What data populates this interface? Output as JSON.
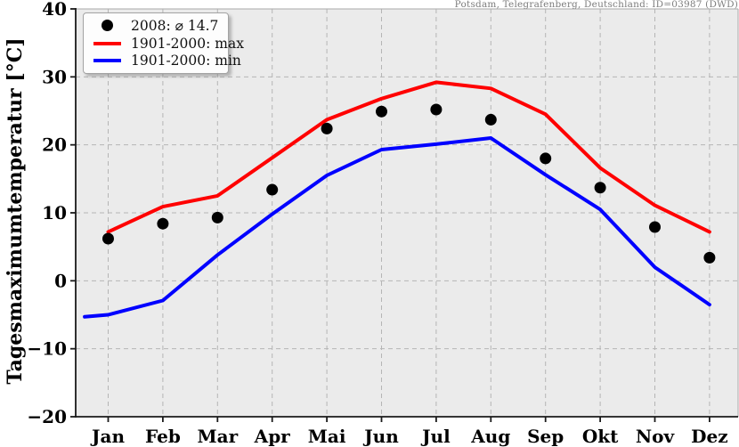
{
  "header": {
    "station_title": "Potsdam, Telegrafenberg, Deutschland: ID=03987 (DWD)"
  },
  "legend": {
    "items": [
      {
        "marker": "dot",
        "color": "#000000",
        "label": "2008: ⌀ 14.7"
      },
      {
        "marker": "line",
        "color": "#ff0000",
        "label": "1901-2000: max"
      },
      {
        "marker": "line",
        "color": "#0000ff",
        "label": "1901-2000: min"
      }
    ]
  },
  "chart_data": {
    "type": "line",
    "title": "Potsdam, Telegrafenberg, Deutschland: ID=03987 (DWD)",
    "xlabel": "",
    "ylabel": "Tagesmaximumtemperatur [°C]",
    "categories": [
      "Jan",
      "Feb",
      "Mar",
      "Apr",
      "Mai",
      "Jun",
      "Jul",
      "Aug",
      "Sep",
      "Okt",
      "Nov",
      "Dez"
    ],
    "ylim": [
      -20,
      40
    ],
    "yticks": [
      40,
      30,
      20,
      10,
      0,
      -10,
      -20
    ],
    "grid": true,
    "grid_style": "dashed",
    "legend_position": "top-left",
    "mean_2008": 14.7,
    "series": [
      {
        "name": "2008: ⌀ 14.7",
        "type": "scatter",
        "color": "#000000",
        "values": [
          6.2,
          8.4,
          9.3,
          13.4,
          22.4,
          24.9,
          25.2,
          23.7,
          18.0,
          13.7,
          7.9,
          3.4
        ]
      },
      {
        "name": "1901-2000: max",
        "type": "line",
        "color": "#ff0000",
        "values": [
          7.2,
          10.9,
          12.5,
          18.1,
          23.7,
          26.8,
          29.2,
          28.3,
          24.5,
          16.6,
          11.1,
          7.2
        ]
      },
      {
        "name": "1901-2000: min",
        "type": "line",
        "color": "#0000ff",
        "values": [
          -5.0,
          -2.9,
          3.8,
          9.8,
          15.5,
          19.3,
          20.1,
          21.0,
          15.6,
          10.5,
          2.0,
          -3.5
        ],
        "lead_in": {
          "month_offset": -0.43,
          "value": -5.3
        }
      }
    ],
    "colors": {
      "plot_bg": "#ebebeb",
      "grid": "#b5b5b5",
      "spine_dark": "#1a1a1a",
      "spine_light": "#aaaaaa"
    }
  }
}
